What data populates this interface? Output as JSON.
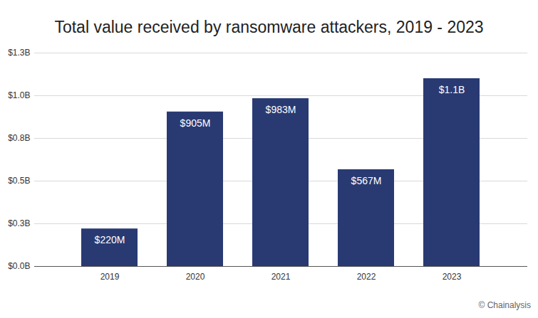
{
  "chart_data": {
    "type": "bar",
    "title": "Total value received by ransomware attackers, 2019 - 2023",
    "source": "© Chainalysis",
    "categories": [
      "2019",
      "2020",
      "2021",
      "2022",
      "2023"
    ],
    "values": [
      0.22,
      0.905,
      0.983,
      0.567,
      1.1
    ],
    "value_labels": [
      "$220M",
      "$905M",
      "$983M",
      "$567M",
      "$1.1B"
    ],
    "color": "#293a73",
    "ylim": [
      0,
      1.25
    ],
    "yticks": [
      {
        "value": 0,
        "label": "$0.0B"
      },
      {
        "value": 0.25,
        "label": "$0.3B"
      },
      {
        "value": 0.5,
        "label": "$0.5B"
      },
      {
        "value": 0.75,
        "label": "$0.8B"
      },
      {
        "value": 1.0,
        "label": "$1.0B"
      },
      {
        "value": 1.25,
        "label": "$1.3B"
      }
    ],
    "grid": true,
    "data_labels": true
  }
}
